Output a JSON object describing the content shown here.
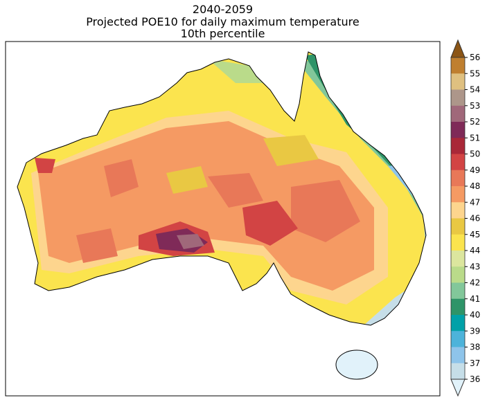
{
  "title": {
    "line1": "2040-2059",
    "line2": "Projected POE10 for daily maximum temperature",
    "line3": "10th percentile"
  },
  "colorbar": {
    "ticks": [
      "56",
      "55",
      "54",
      "53",
      "52",
      "51",
      "50",
      "49",
      "48",
      "47",
      "46",
      "45",
      "44",
      "43",
      "42",
      "41",
      "40",
      "39",
      "38",
      "37",
      "36"
    ],
    "extend_max_color": "#8B5516",
    "extend_min_color": "#E1F2FA",
    "colors": [
      "#BF7F30",
      "#DFC080",
      "#AD968A",
      "#A0687A",
      "#7F2A58",
      "#A92838",
      "#D24444",
      "#E87858",
      "#F59A63",
      "#FDD58E",
      "#E9C843",
      "#FBE44E",
      "#DCE69E",
      "#BADB8A",
      "#82C79A",
      "#2E9468",
      "#00A1A8",
      "#4DB3DA",
      "#8EC4EA",
      "#C6DEE8"
    ]
  }
}
